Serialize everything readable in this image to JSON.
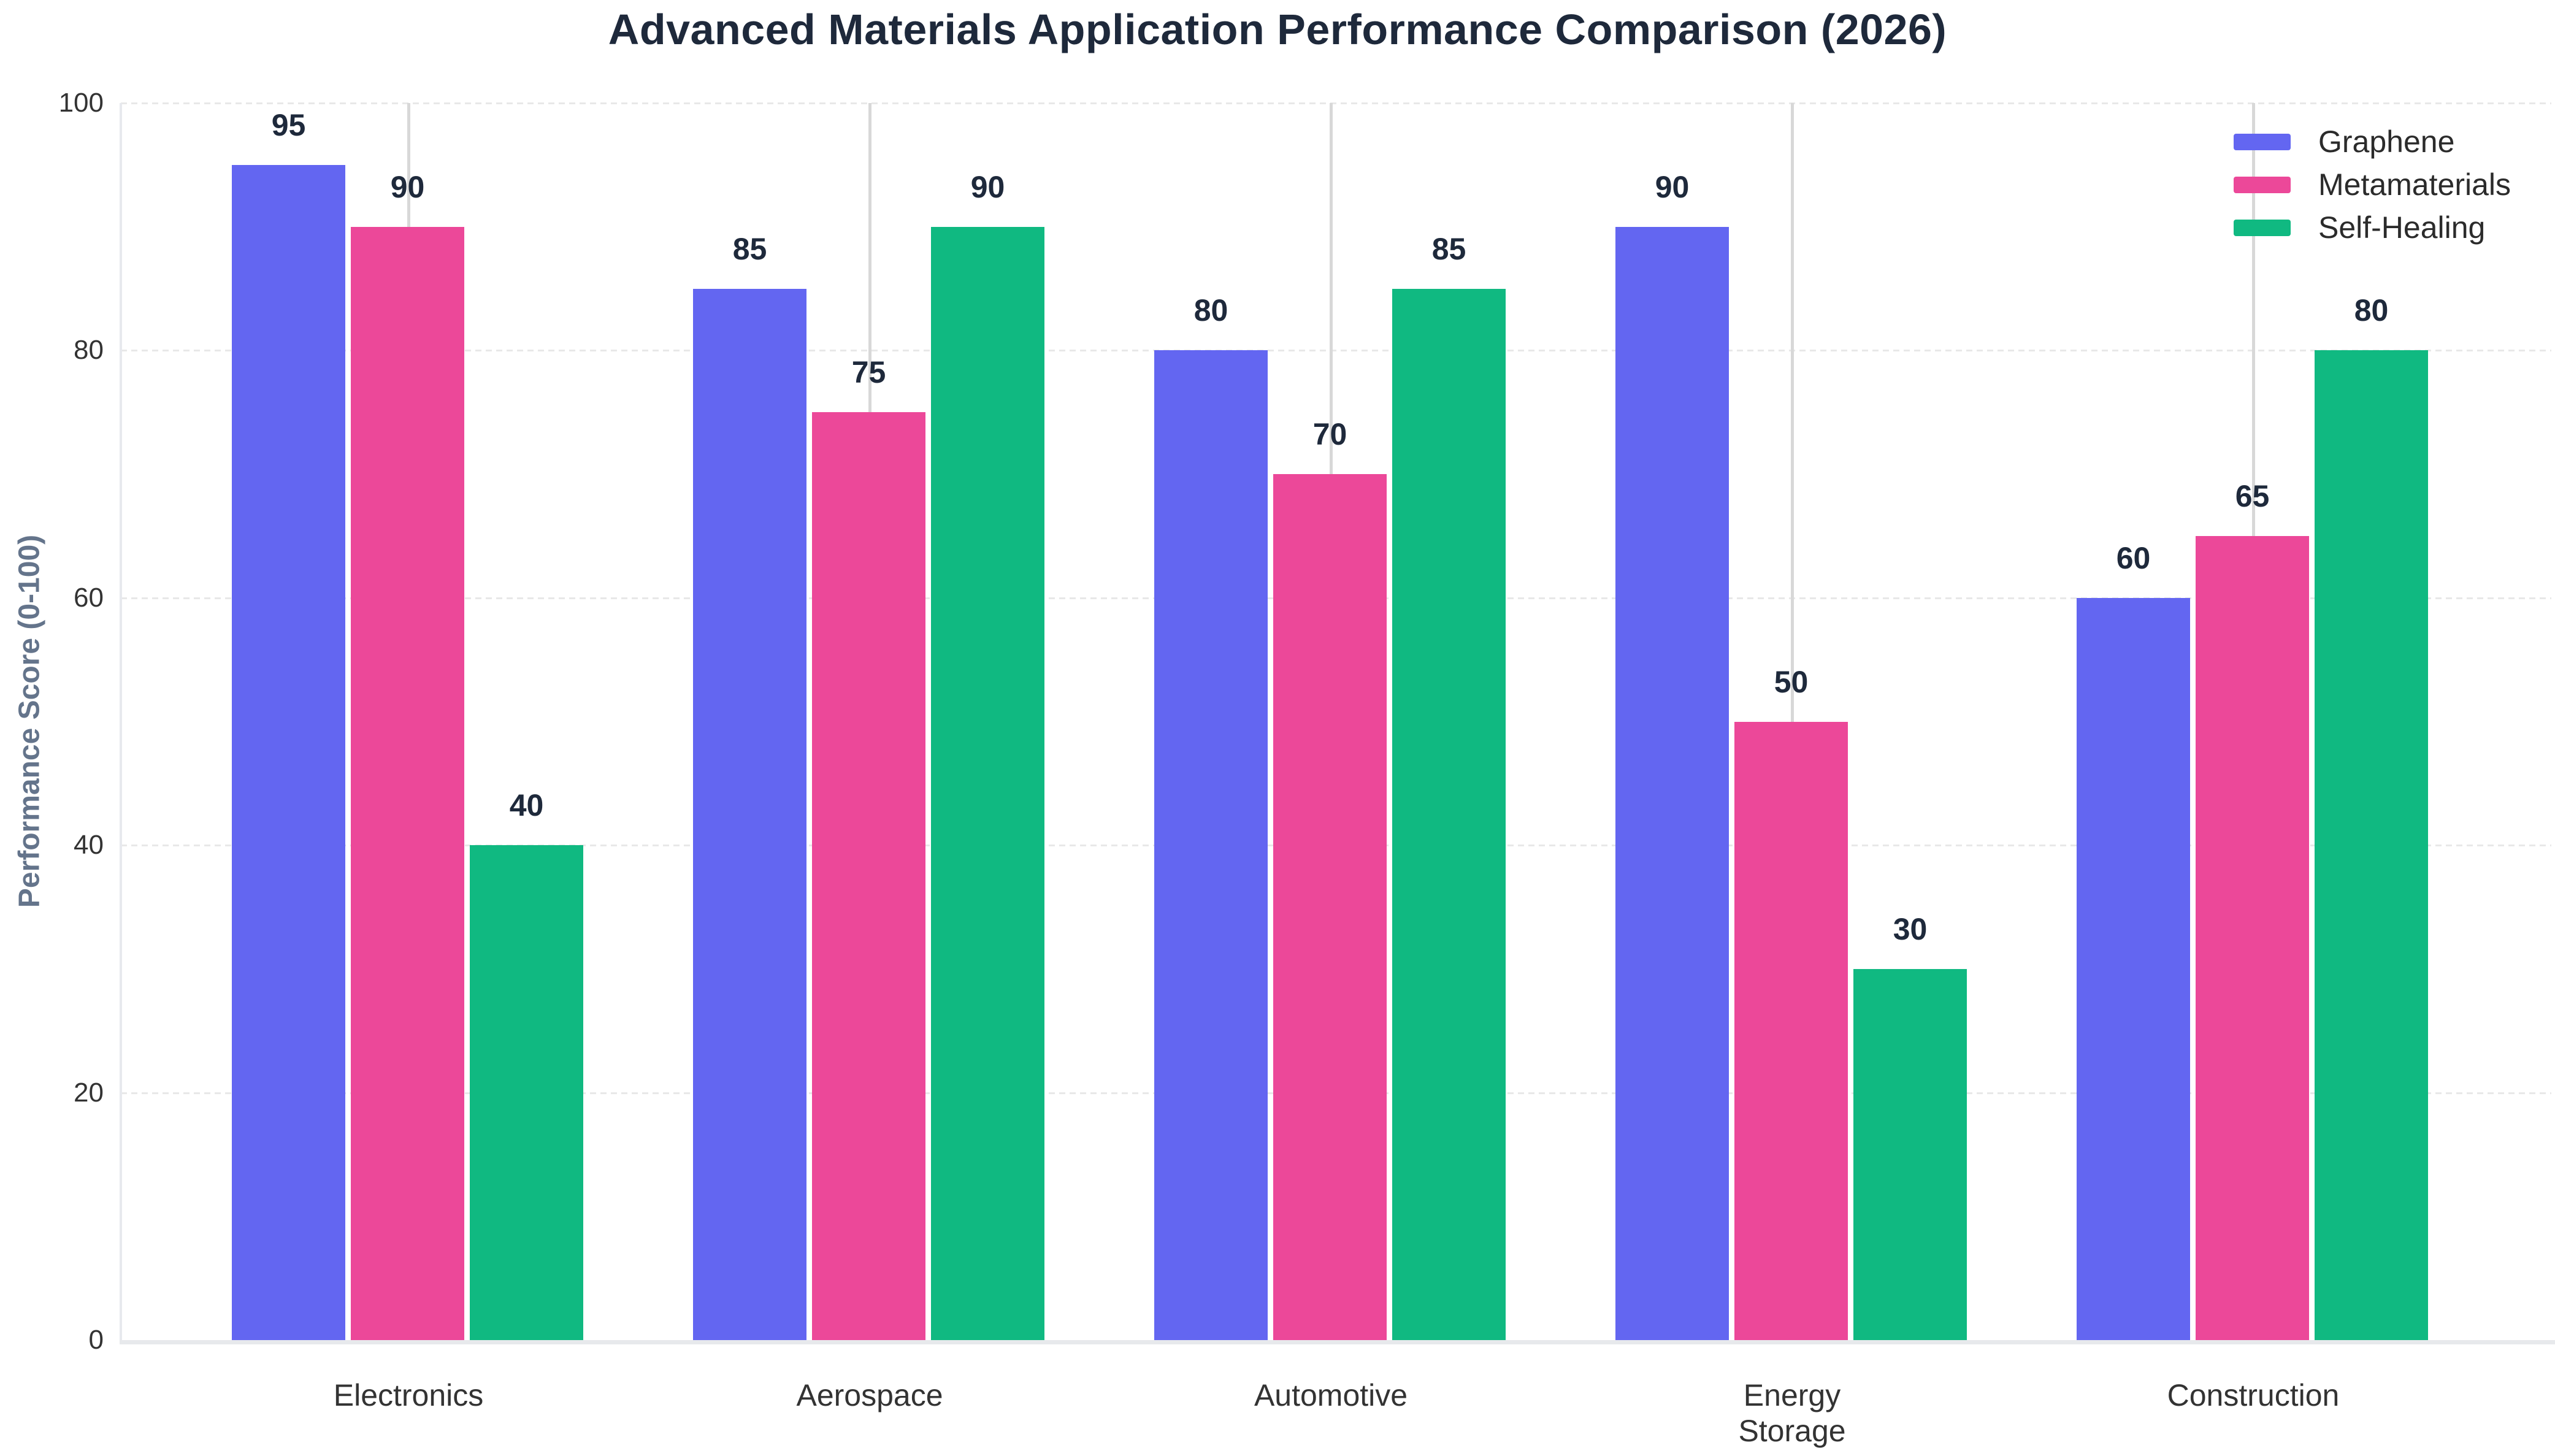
{
  "chart_data": {
    "type": "bar",
    "title": "Advanced Materials Application Performance Comparison (2026)",
    "ylabel": "Performance Score (0-100)",
    "xlabel": "",
    "categories": [
      "Electronics",
      "Aerospace",
      "Automotive",
      "Energy\nStorage",
      "Construction"
    ],
    "series": [
      {
        "name": "Graphene",
        "color": "#6366f1",
        "values": [
          95,
          85,
          80,
          90,
          60
        ]
      },
      {
        "name": "Metamaterials",
        "color": "#ec4899",
        "values": [
          90,
          75,
          70,
          50,
          65
        ]
      },
      {
        "name": "Self-Healing",
        "color": "#10b981",
        "values": [
          40,
          90,
          85,
          30,
          80
        ]
      }
    ],
    "ylim": [
      0,
      100
    ],
    "yticks": [
      0,
      20,
      40,
      60,
      80,
      100
    ],
    "legend_position": "top-right",
    "grid": "horizontal-dashed",
    "value_labels": true
  },
  "colors": {
    "background": "#ffffff",
    "title_text": "#1e293b",
    "value_label_text": "#1e293b",
    "tick_text": "#333333",
    "y_axis_title_text": "#64748b",
    "gridline": "#e8e8e8",
    "category_line": "#d8d8d8",
    "axis_line": "#e7e9ec"
  }
}
